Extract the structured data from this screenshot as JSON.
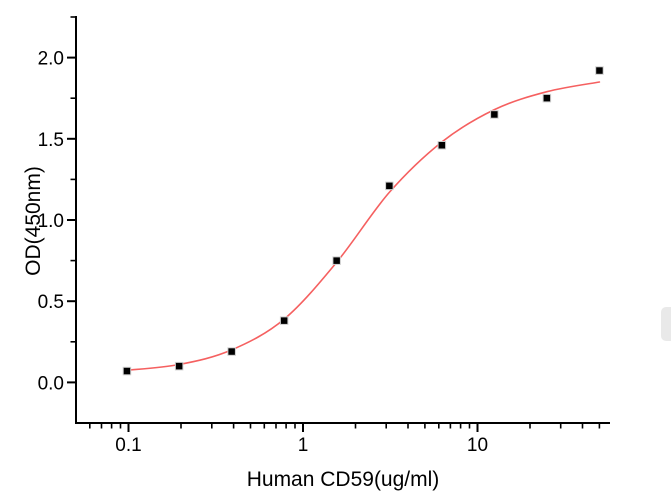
{
  "page": {
    "background": "#ffffff"
  },
  "scrollbar": {
    "thumb_color": "#e9e9e9"
  },
  "chart_data": {
    "type": "scatter",
    "title": "",
    "xlabel": "Human CD59(ug/ml)",
    "ylabel": "OD(450nm)",
    "x_scale": "log10",
    "xlim": [
      0.05,
      57.5
    ],
    "ylim": [
      -0.25,
      2.25
    ],
    "grid": false,
    "legend": "none",
    "axis_color": "#000000",
    "x_axis": {
      "major_ticks": [
        0.1,
        1,
        10
      ],
      "major_tick_labels": [
        "0.1",
        "1",
        "10"
      ],
      "minor_ticks": [
        0.06,
        0.07,
        0.08,
        0.09,
        0.2,
        0.3,
        0.4,
        0.5,
        0.6,
        0.7,
        0.8,
        0.9,
        2,
        3,
        4,
        5,
        6,
        7,
        8,
        9,
        20,
        30,
        40,
        50
      ]
    },
    "y_axis": {
      "major_ticks": [
        0.0,
        0.5,
        1.0,
        1.5,
        2.0
      ],
      "major_tick_labels": [
        "0.0",
        "0.5",
        "1.0",
        "1.5",
        "2.0"
      ],
      "minor_ticks": [
        0.25,
        0.75,
        1.25,
        1.75,
        2.25
      ]
    },
    "series": [
      {
        "name": "measured-od",
        "type": "scatter",
        "marker": "square",
        "marker_color": "#000000",
        "marker_edge_color": "#cfcfcf",
        "x": [
          0.098,
          0.195,
          0.39,
          0.78,
          1.56,
          3.125,
          6.25,
          12.5,
          25,
          50
        ],
        "y": [
          0.07,
          0.1,
          0.19,
          0.38,
          0.75,
          1.21,
          1.46,
          1.65,
          1.75,
          1.92
        ]
      },
      {
        "name": "fit-curve",
        "type": "line",
        "line_color": "#f56060",
        "x": [
          0.098,
          0.195,
          0.39,
          0.78,
          1.56,
          3.125,
          6.25,
          12.5,
          25,
          50
        ],
        "y": [
          0.075,
          0.11,
          0.2,
          0.39,
          0.74,
          1.17,
          1.48,
          1.68,
          1.79,
          1.85
        ]
      }
    ]
  }
}
